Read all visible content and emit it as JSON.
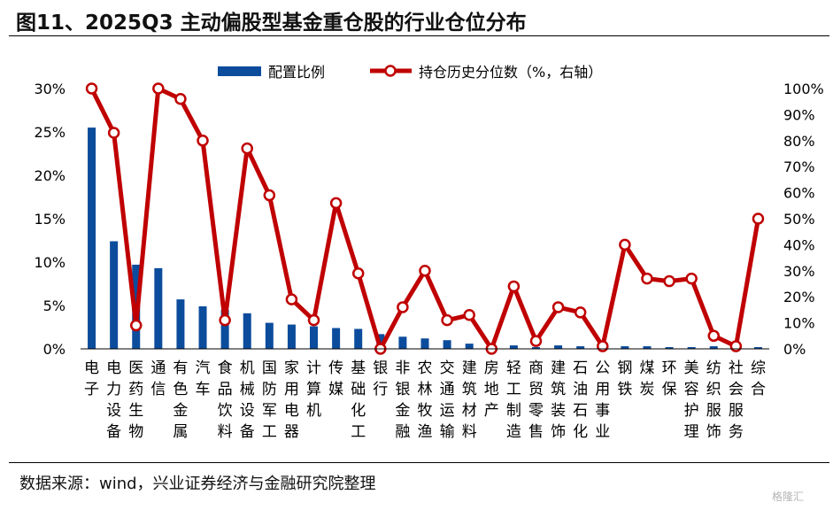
{
  "title": "图11、2025Q3 主动偏股型基金重仓股的行业仓位分布",
  "source": "数据来源：wind，兴业证券经济与金融研究院整理",
  "watermark": "格隆汇",
  "colors": {
    "bar": "#0c4c9c",
    "line": "#c00000",
    "marker_fill": "#ffffff"
  },
  "chart_data": {
    "type": "bar+line",
    "title": "图11、2025Q3 主动偏股型基金重仓股的行业仓位分布",
    "categories": [
      "电子",
      "电力设备",
      "医药生物",
      "通信",
      "有色金属",
      "汽车",
      "食品饮料",
      "机械设备",
      "国防军工",
      "家用电器",
      "计算机",
      "传媒",
      "基础化工",
      "银行",
      "非银金融",
      "农林牧渔",
      "交通运输",
      "建筑材料",
      "房地产",
      "轻工制造",
      "商贸零售",
      "建筑装饰",
      "石油石化",
      "公用事业",
      "钢铁",
      "煤炭",
      "环保",
      "美容护理",
      "纺织服饰",
      "社会服务",
      "综合"
    ],
    "series": [
      {
        "name": "配置比例",
        "type": "bar",
        "axis": "left",
        "values": [
          25.5,
          12.4,
          9.7,
          9.3,
          5.7,
          4.9,
          4.5,
          4.1,
          3.0,
          2.8,
          2.6,
          2.4,
          2.3,
          1.7,
          1.4,
          1.2,
          1.0,
          0.6,
          0.1,
          0.4,
          0.2,
          0.4,
          0.3,
          0.15,
          0.3,
          0.3,
          0.2,
          0.2,
          0.3,
          0.1,
          0.2
        ]
      },
      {
        "name": "持仓历史分位数（%，右轴）",
        "type": "line",
        "axis": "right",
        "values": [
          100,
          83,
          9,
          100,
          96,
          80,
          11,
          77,
          59,
          19,
          11,
          56,
          29,
          0,
          16,
          30,
          11,
          13,
          0,
          24,
          3,
          16,
          14,
          1,
          40,
          27,
          26,
          27,
          5,
          1,
          50
        ]
      }
    ],
    "y_left": {
      "min": 0,
      "max": 30,
      "step": 5,
      "ticks": [
        "0%",
        "5%",
        "10%",
        "15%",
        "20%",
        "25%",
        "30%"
      ]
    },
    "y_right": {
      "min": 0,
      "max": 100,
      "step": 10,
      "ticks": [
        "0%",
        "10%",
        "20%",
        "30%",
        "40%",
        "50%",
        "60%",
        "70%",
        "80%",
        "90%",
        "100%"
      ]
    },
    "legend_position": "top-center"
  }
}
